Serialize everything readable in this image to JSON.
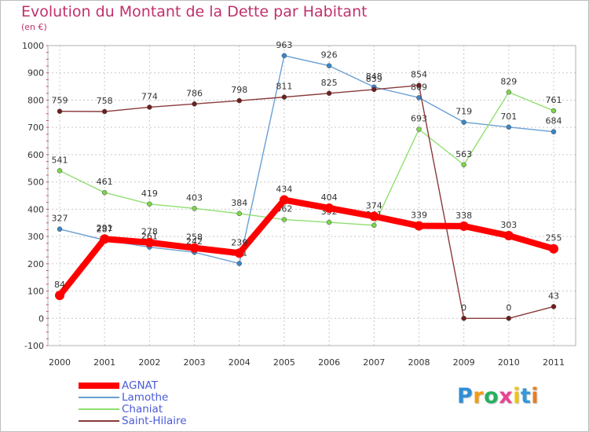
{
  "chart_data": {
    "type": "line",
    "title": "Evolution du Montant de la Dette par Habitant",
    "subtitle": "(en €)",
    "x": [
      "2000",
      "2001",
      "2002",
      "2003",
      "2004",
      "2005",
      "2006",
      "2007",
      "2008",
      "2009",
      "2010",
      "2011"
    ],
    "ylim": [
      -100,
      1000
    ],
    "yticks": [
      "-100",
      "0",
      "100",
      "200",
      "300",
      "400",
      "500",
      "600",
      "700",
      "800",
      "900",
      "1000"
    ],
    "grid": true,
    "legend_position": "bottom-left",
    "series": [
      {
        "name": "Lamothe",
        "color": "#6a9fd4",
        "marker_color": "#3a87c8",
        "values": [
          327,
          287,
          261,
          242,
          201,
          963,
          926,
          848,
          809,
          719,
          701,
          684
        ]
      },
      {
        "name": "Chaniat",
        "color": "#8ee070",
        "marker_color": "#7cd44a",
        "values": [
          541,
          461,
          419,
          403,
          384,
          362,
          352,
          341,
          693,
          563,
          829,
          761
        ]
      },
      {
        "name": "Saint-Hilaire",
        "color": "#8b3a3a",
        "marker_color": "#6e1f1f",
        "values": [
          759,
          758,
          774,
          786,
          798,
          811,
          825,
          839,
          854,
          0,
          0,
          43
        ]
      },
      {
        "name": "AGNAT",
        "color": "#ff0000",
        "marker_color": "#ff0000",
        "values": [
          84,
          291,
          278,
          258,
          239,
          434,
          404,
          374,
          339,
          338,
          303,
          255
        ]
      }
    ]
  },
  "legend": {
    "items": [
      {
        "label": "AGNAT",
        "color": "#ff0000",
        "thickness": 8
      },
      {
        "label": "Lamothe",
        "color": "#6a9fd4",
        "thickness": 2
      },
      {
        "label": "Chaniat",
        "color": "#8ee070",
        "thickness": 2
      },
      {
        "label": "Saint-Hilaire",
        "color": "#8b3a3a",
        "thickness": 2
      }
    ]
  },
  "logo": {
    "letters": [
      "P",
      "r",
      "o",
      "x",
      "i",
      "t",
      "i"
    ],
    "colors": [
      "#2f8fd6",
      "#f39c12",
      "#27ae60",
      "#e84393",
      "#f1c40f",
      "#3498db",
      "#e67e22"
    ]
  }
}
